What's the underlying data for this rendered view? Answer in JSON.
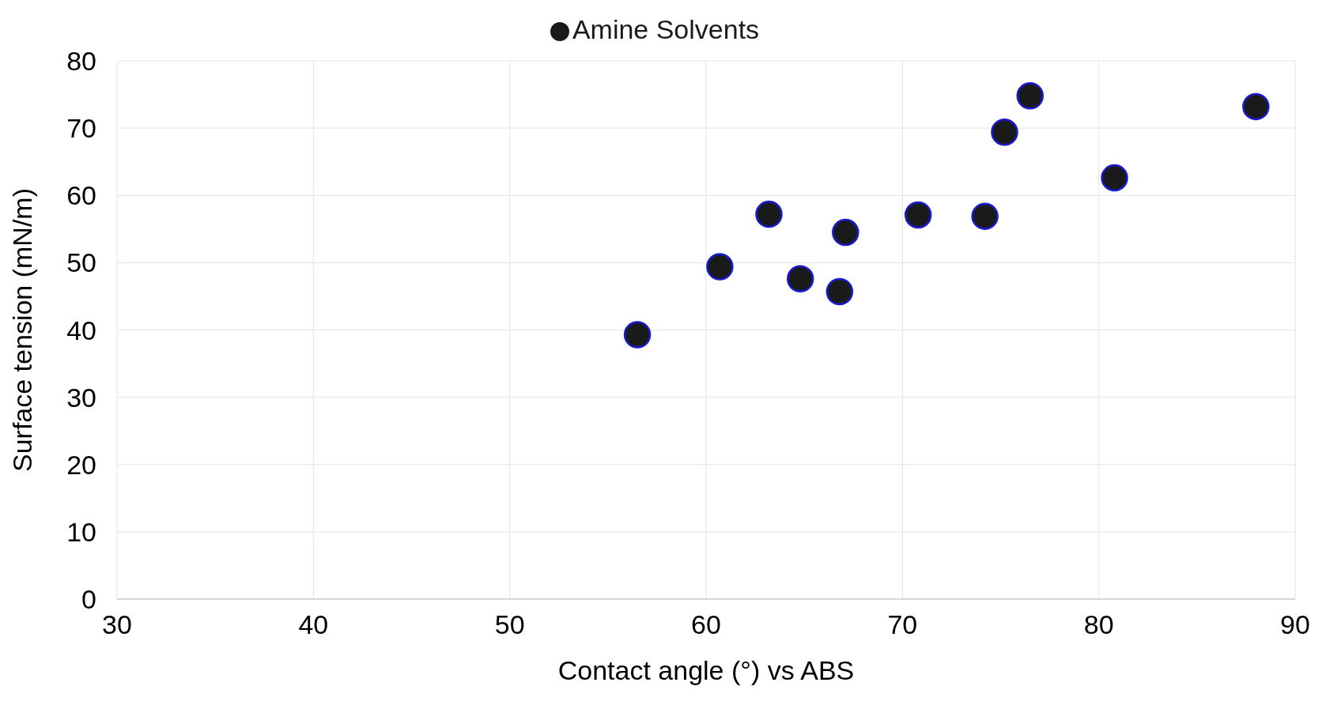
{
  "chart_data": {
    "type": "scatter",
    "xlabel": "Contact angle (°) vs ABS",
    "ylabel": "Surface tension (mN/m)",
    "series": [
      {
        "name": "Amine Solvents",
        "color": "#1a1a1a",
        "x": [
          56.5,
          60.7,
          63.2,
          64.8,
          66.8,
          67.1,
          70.8,
          74.2,
          75.2,
          76.5,
          80.8,
          88.0
        ],
        "values": [
          39.3,
          49.4,
          57.2,
          47.6,
          45.7,
          54.5,
          57.1,
          56.9,
          69.4,
          74.8,
          62.6,
          73.2
        ]
      }
    ],
    "xlim": [
      30,
      90
    ],
    "xticks": [
      30,
      40,
      50,
      60,
      70,
      80,
      90
    ],
    "ylim": [
      0,
      80
    ],
    "yticks": [
      0,
      10,
      20,
      30,
      40,
      50,
      60,
      70,
      80
    ],
    "grid": true,
    "legend": "top",
    "marker": "circle"
  }
}
